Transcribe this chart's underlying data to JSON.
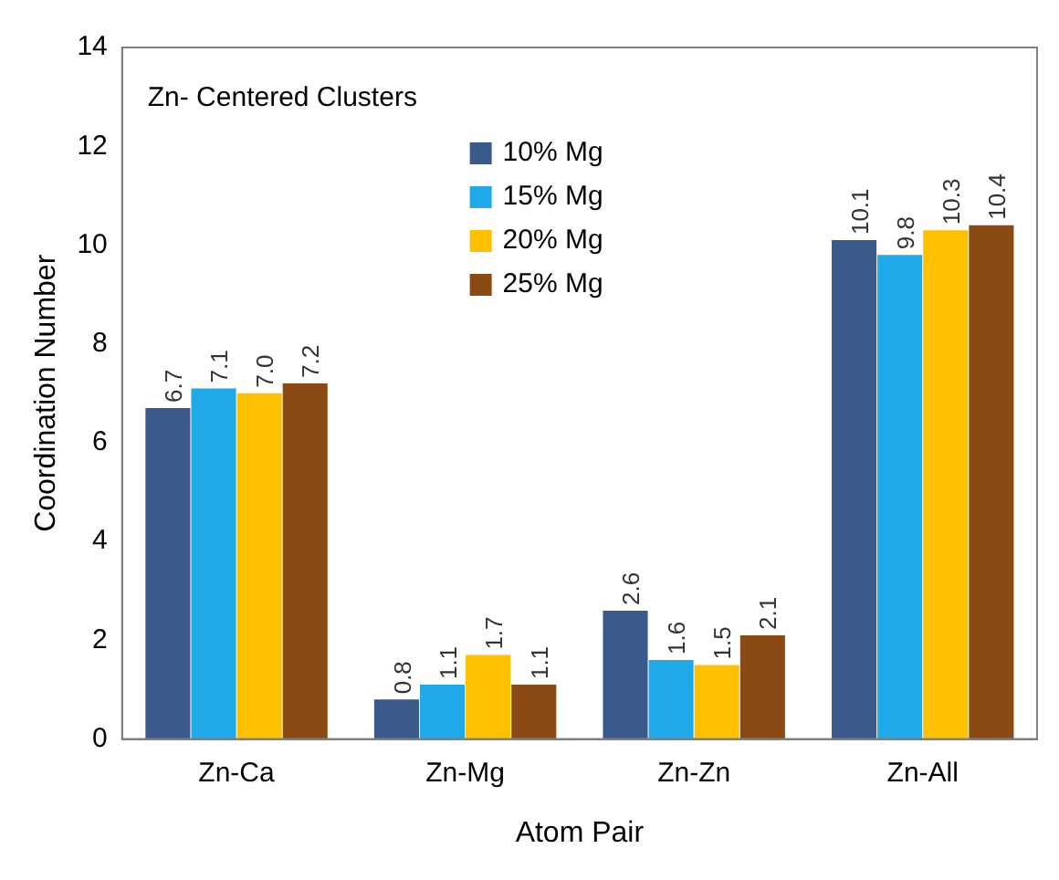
{
  "chart_data": {
    "type": "bar",
    "title": "Zn- Centered Clusters",
    "xlabel": "Atom Pair",
    "ylabel": "Coordination Number",
    "categories": [
      "Zn-Ca",
      "Zn-Mg",
      "Zn-Zn",
      "Zn-All"
    ],
    "series": [
      {
        "name": "10% Mg",
        "color": "#3a5a8c",
        "values": [
          6.7,
          0.8,
          2.6,
          10.1
        ],
        "value_labels": [
          "6.7",
          "0.8",
          "2.6",
          "10.1"
        ]
      },
      {
        "name": "15% Mg",
        "color": "#1fa9e8",
        "values": [
          7.1,
          1.1,
          1.6,
          9.8
        ],
        "value_labels": [
          "7.1",
          "1.1",
          "1.6",
          "9.8"
        ]
      },
      {
        "name": "20% Mg",
        "color": "#ffc000",
        "values": [
          7.0,
          1.7,
          1.5,
          10.3
        ],
        "value_labels": [
          "7.0",
          "1.7",
          "1.5",
          "10.3"
        ]
      },
      {
        "name": "25% Mg",
        "color": "#8b4a14",
        "values": [
          7.2,
          1.1,
          2.1,
          10.4
        ],
        "value_labels": [
          "7.2",
          "1.1",
          "2.1",
          "10.4"
        ]
      }
    ],
    "ylim": [
      0,
      14
    ],
    "yticks": [
      0,
      2,
      4,
      6,
      8,
      10,
      12,
      14
    ],
    "grid": false,
    "legend": "top"
  }
}
